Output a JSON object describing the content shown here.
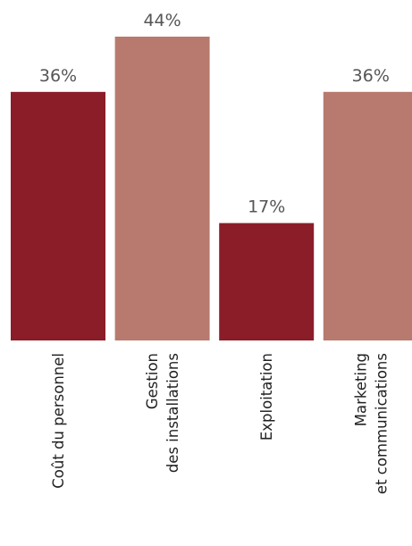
{
  "chart_data": {
    "type": "bar",
    "categories": [
      [
        "Coût du personnel"
      ],
      [
        "Gestion",
        "des installations"
      ],
      [
        "Exploitation"
      ],
      [
        "Marketing",
        "et communications"
      ]
    ],
    "values": [
      36,
      44,
      17,
      36
    ],
    "value_labels": [
      "36%",
      "44%",
      "17%",
      "36%"
    ],
    "colors": [
      "#8b1d29",
      "#b87a6e",
      "#8b1d29",
      "#b87a6e"
    ]
  }
}
